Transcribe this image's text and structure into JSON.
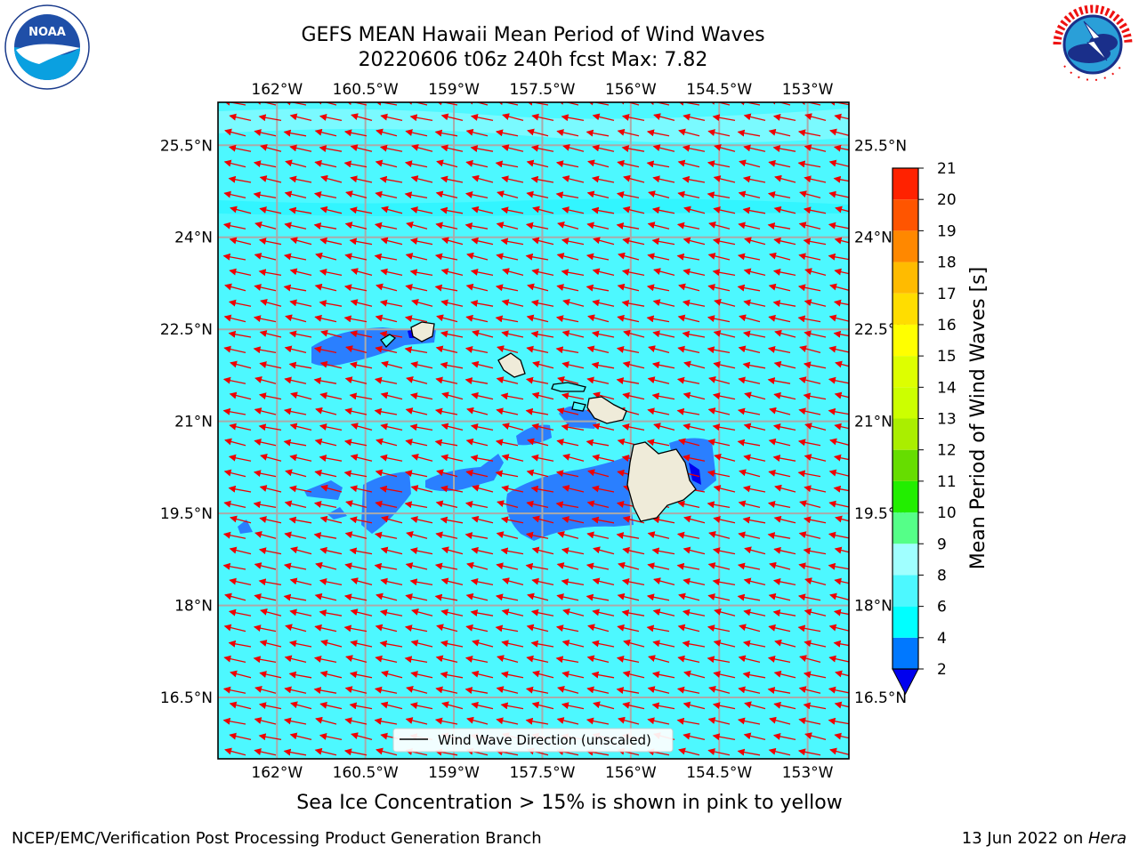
{
  "title": {
    "line1": "GEFS MEAN Hawaii Mean Period of Wind Waves",
    "line2": "20220606 t06z 240h fcst   Max: 7.82"
  },
  "logos": {
    "noaa_text": "NOAA",
    "noaa_ring_text": "NATIONAL OCEANIC AND ATMOSPHERIC ADMINISTRATION · U.S. DEPARTMENT OF COMMERCE",
    "nws_ring_text": "NATIONAL WEATHER SERVICE"
  },
  "legend": {
    "label": "Wind Wave Direction (unscaled)"
  },
  "colorbar": {
    "label": "Mean Period of Wind Waves [s]",
    "ticks": [
      "2",
      "4",
      "6",
      "8",
      "9",
      "10",
      "11",
      "12",
      "13",
      "14",
      "15",
      "16",
      "17",
      "18",
      "19",
      "20",
      "21"
    ],
    "colors": [
      "#0078ff",
      "#00ffff",
      "#4df8ff",
      "#a0ffff",
      "#55ff88",
      "#22ee00",
      "#66dd00",
      "#aaee00",
      "#ccff00",
      "#ddff00",
      "#ffff00",
      "#ffdd00",
      "#ffbb00",
      "#ff8800",
      "#ff5500",
      "#ff2200"
    ],
    "extend_color": "#0000ee"
  },
  "footer": {
    "left": "NCEP/EMC/Verification Post Processing Product Generation Branch",
    "right_date": "13 Jun 2022 on ",
    "right_machine": "Hera"
  },
  "note": "Sea Ice Concentration > 15% is shown in pink to yellow",
  "chart_data": {
    "type": "heatmap",
    "title": "GEFS MEAN Hawaii Mean Period of Wind Waves",
    "subtitle": "20220606 t06z 240h fcst   Max: 7.82",
    "max_value": 7.82,
    "units": "s",
    "lon_ticks": [
      "162°W",
      "160.5°W",
      "159°W",
      "157.5°W",
      "156°W",
      "154.5°W",
      "153°W"
    ],
    "lon_values": [
      -162,
      -160.5,
      -159,
      -157.5,
      -156,
      -154.5,
      -153
    ],
    "lat_ticks": [
      "25.5°N",
      "24°N",
      "22.5°N",
      "21°N",
      "19.5°N",
      "18°N",
      "16.5°N"
    ],
    "lat_values": [
      25.5,
      24,
      22.5,
      21,
      19.5,
      18,
      16.5
    ],
    "lon_range": [
      -163,
      -152.3
    ],
    "lat_range": [
      15.5,
      26.2
    ],
    "grid": true,
    "background_level": "6-8 s",
    "low_period_zones": "2-4 s near the island chain (lee of Hawaii, Maui, Molokai, Kauai)",
    "vectors": {
      "direction": "from east-northeast toward west-southwest",
      "color": "#ee0000",
      "scaled": false
    },
    "colorbar_levels": [
      2,
      4,
      6,
      8,
      9,
      10,
      11,
      12,
      13,
      14,
      15,
      16,
      17,
      18,
      19,
      20,
      21
    ]
  }
}
